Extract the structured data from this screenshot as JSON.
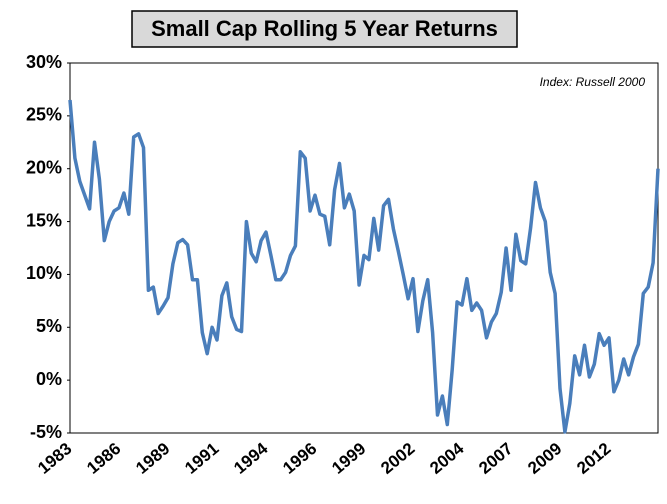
{
  "chart_data": {
    "type": "line",
    "title": "Small Cap Rolling 5 Year Returns",
    "annotation": "Index: Russell 2000",
    "categories": [
      "1983",
      null,
      null,
      null,
      null,
      null,
      null,
      null,
      null,
      null,
      "1986",
      null,
      null,
      null,
      null,
      null,
      null,
      null,
      null,
      null,
      "1989",
      null,
      null,
      null,
      null,
      null,
      null,
      null,
      null,
      null,
      "1991",
      null,
      null,
      null,
      null,
      null,
      null,
      null,
      null,
      null,
      "1994",
      null,
      null,
      null,
      null,
      null,
      null,
      null,
      null,
      null,
      "1996",
      null,
      null,
      null,
      null,
      null,
      null,
      null,
      null,
      null,
      "1999",
      null,
      null,
      null,
      null,
      null,
      null,
      null,
      null,
      null,
      "2002",
      null,
      null,
      null,
      null,
      null,
      null,
      null,
      null,
      null,
      "2004",
      null,
      null,
      null,
      null,
      null,
      null,
      null,
      null,
      null,
      "2007",
      null,
      null,
      null,
      null,
      null,
      null,
      null,
      null,
      null,
      "2009",
      null,
      null,
      null,
      null,
      null,
      null,
      null,
      null,
      null,
      "2012",
      null,
      null,
      null,
      null,
      null,
      null,
      null,
      null,
      null,
      null
    ],
    "series": [
      {
        "name": "Russell 2000",
        "color": "#4a7ebb",
        "values": [
          26.5,
          21,
          18.8,
          17.5,
          16.2,
          22.5,
          19,
          13.2,
          15,
          16,
          16.3,
          17.7,
          15.7,
          23,
          23.3,
          22,
          8.5,
          8.8,
          6.3,
          7,
          7.8,
          11,
          13,
          13.3,
          12.8,
          9.5,
          9.5,
          4.5,
          2.5,
          5,
          3.8,
          8,
          9.2,
          6,
          4.8,
          4.6,
          15,
          12,
          11.2,
          13.2,
          14,
          11.8,
          9.5,
          9.5,
          10.2,
          11.8,
          12.7,
          21.6,
          21,
          16,
          17.5,
          15.7,
          15.5,
          12.8,
          18,
          20.5,
          16.3,
          17.6,
          16,
          9,
          11.8,
          11.4,
          15.3,
          12.3,
          16.5,
          17.1,
          14.3,
          12.2,
          10,
          7.7,
          9.6,
          4.6,
          7.5,
          9.5,
          4.5,
          -3.3,
          -1.5,
          -4.2,
          1,
          7.4,
          7.1,
          9.6,
          6.6,
          7.3,
          6.6,
          4,
          5.5,
          6.3,
          8.3,
          12.5,
          8.5,
          13.8,
          11.3,
          11,
          14.4,
          18.7,
          16.3,
          15,
          10.2,
          8.2,
          -0.8,
          -4.9,
          -2.2,
          2.3,
          0.5,
          3.3,
          0.3,
          1.5,
          4.4,
          3.3,
          4,
          -1.1,
          0,
          2,
          0.5,
          2.2,
          3.4,
          8.2,
          8.8,
          11.1,
          20
        ]
      }
    ],
    "ylim": [
      -5,
      30
    ],
    "yticks": [
      {
        "value": -5,
        "label": "-5%"
      },
      {
        "value": 0,
        "label": "0%"
      },
      {
        "value": 5,
        "label": "5%"
      },
      {
        "value": 10,
        "label": "10%"
      },
      {
        "value": 15,
        "label": "15%"
      },
      {
        "value": 20,
        "label": "20%"
      },
      {
        "value": 25,
        "label": "25%"
      },
      {
        "value": 30,
        "label": "30%"
      }
    ],
    "grid": false
  }
}
